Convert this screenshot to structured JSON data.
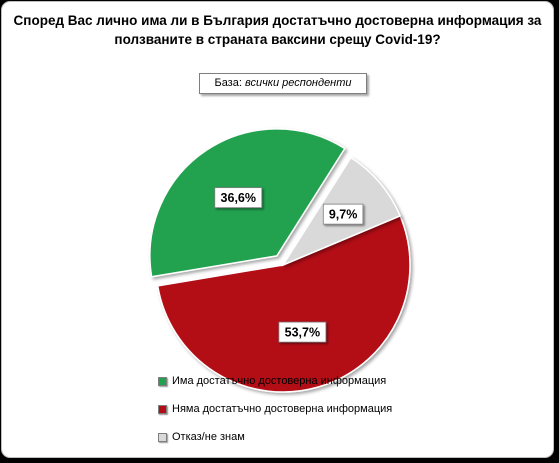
{
  "chart_data": {
    "type": "pie",
    "title": "Според Вас лично има ли в България достатъчно достоверна информация за ползваните в страната ваксини срещу Covid-19?",
    "base_label": "База:",
    "base_value": "всички респонденти",
    "slices": [
      {
        "label": "Има достатъчно достоверна информация",
        "value": 36.6,
        "display": "36,6%",
        "color": "#21a150",
        "exploded": true
      },
      {
        "label": "Няма достатъчно достоверна информация",
        "value": 53.7,
        "display": "53,7%",
        "color": "#b30e16",
        "exploded": false
      },
      {
        "label": "Отказ/не знам",
        "value": 9.7,
        "display": "9,7%",
        "color": "#d9d9d9",
        "exploded": false
      }
    ],
    "legend_position": "bottom"
  }
}
